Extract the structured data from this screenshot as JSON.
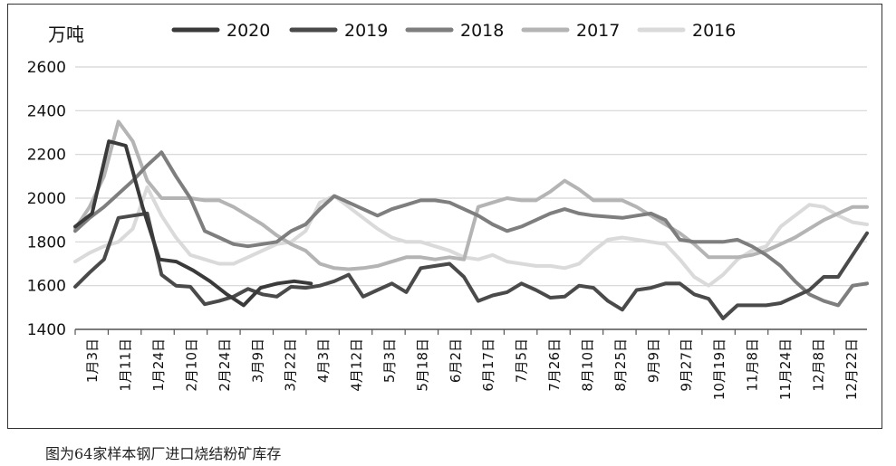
{
  "caption": "图为64家样本钢厂进口烧结粉矿库存",
  "chart_data": {
    "type": "line",
    "title": "",
    "xlabel": "",
    "ylabel": "万吨",
    "ylim": [
      1400,
      2600
    ],
    "yticks": [
      1400,
      1600,
      1800,
      2000,
      2200,
      2400,
      2600
    ],
    "grid": true,
    "legend_position": "top",
    "x_tick_labels": [
      "1月3日",
      "1月11日",
      "1月24日",
      "2月10日",
      "2月24日",
      "3月9日",
      "3月22日",
      "4月3日",
      "4月12日",
      "5月3日",
      "5月18日",
      "6月2日",
      "6月17日",
      "7月5日",
      "7月26日",
      "8月10日",
      "8月25日",
      "9月9日",
      "9月27日",
      "10月19日",
      "11月8日",
      "11月24日",
      "12月8日",
      "12月22日"
    ],
    "x_points": 48,
    "series": [
      {
        "name": "2020",
        "color": "#3a3a3a",
        "values": [
          1870,
          1930,
          2260,
          2240,
          1960,
          1720,
          1710,
          1670,
          1620,
          1560,
          1510,
          1590,
          1610,
          1620,
          1610,
          null,
          null,
          null,
          null,
          null,
          null,
          null,
          null,
          null,
          null,
          null,
          null,
          null,
          null,
          null,
          null,
          null,
          null,
          null,
          null,
          null,
          null,
          null,
          null,
          null,
          null,
          null,
          null,
          null,
          null,
          null,
          null,
          null
        ]
      },
      {
        "name": "2019",
        "color": "#4a4a4a",
        "values": [
          1595,
          1660,
          1720,
          1910,
          1920,
          1930,
          1650,
          1600,
          1595,
          1515,
          1530,
          1550,
          1585,
          1560,
          1550,
          1595,
          1590,
          1600,
          1620,
          1650,
          1550,
          1580,
          1610,
          1570,
          1680,
          1690,
          1700,
          1640,
          1530,
          1555,
          1570,
          1610,
          1580,
          1545,
          1550,
          1600,
          1590,
          1530,
          1490,
          1580,
          1590,
          1610,
          1610,
          1560,
          1540,
          1450,
          1510,
          1510
        ]
      },
      {
        "name": "2018",
        "color": "#7e7e7e",
        "values": [
          1850,
          1910,
          1960,
          2020,
          2080,
          2150,
          2210,
          2100,
          2000,
          1850,
          1820,
          1790,
          1780,
          1790,
          1800,
          1850,
          1880,
          1950,
          2010,
          1980,
          1950,
          1920,
          1950,
          1970,
          1990,
          1990,
          1980,
          1950,
          1920,
          1880,
          1850,
          1870,
          1900,
          1930,
          1950,
          1930,
          1920,
          1915,
          1910,
          1920,
          1930,
          1900,
          1810,
          1800,
          1800,
          1800,
          1810,
          1780
        ]
      },
      {
        "name": "2017",
        "color": "#b4b4b4",
        "values": [
          1860,
          1960,
          2100,
          2350,
          2260,
          2080,
          2000,
          2000,
          2000,
          1990,
          1990,
          1960,
          1920,
          1880,
          1830,
          1790,
          1760,
          1700,
          1680,
          1675,
          1680,
          1690,
          1710,
          1730,
          1730,
          1720,
          1730,
          1720,
          1960,
          1980,
          2000,
          1990,
          1990,
          2030,
          2080,
          2040,
          1990,
          1990,
          1990,
          1960,
          1920,
          1880,
          1840,
          1790,
          1730,
          1730,
          1730,
          1740
        ]
      },
      {
        "name": "2016",
        "color": "#dadada",
        "values": [
          1710,
          1750,
          1780,
          1800,
          1860,
          2050,
          1920,
          1820,
          1740,
          1720,
          1700,
          1700,
          1730,
          1760,
          1790,
          1800,
          1850,
          1980,
          2010,
          1960,
          1910,
          1860,
          1820,
          1800,
          1800,
          1780,
          1760,
          1730,
          1720,
          1740,
          1710,
          1700,
          1690,
          1690,
          1680,
          1700,
          1760,
          1810,
          1820,
          1810,
          1800,
          1790,
          1720,
          1640,
          1600,
          1650,
          1720,
          1760
        ]
      }
    ],
    "series_tail": [
      {
        "name": "2019",
        "values": [
          1510,
          1520,
          1550,
          1580,
          1640,
          1640,
          1740,
          1840
        ]
      },
      {
        "name": "2018",
        "values": [
          1740,
          1690,
          1620,
          1560,
          1530,
          1510,
          1600,
          1610
        ]
      },
      {
        "name": "2017",
        "values": [
          1760,
          1790,
          1820,
          1860,
          1900,
          1930,
          1960,
          1960
        ]
      },
      {
        "name": "2016",
        "values": [
          1780,
          1870,
          1920,
          1970,
          1960,
          1920,
          1890,
          1880
        ]
      }
    ]
  }
}
